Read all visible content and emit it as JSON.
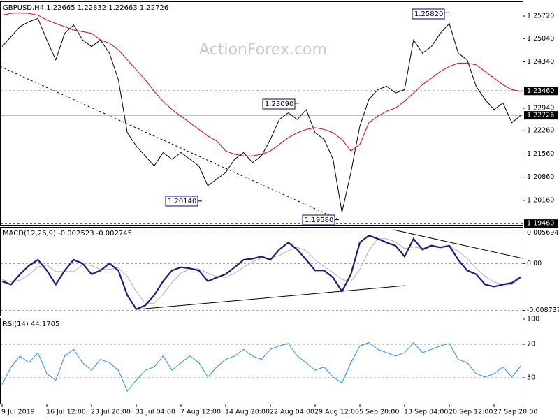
{
  "chart_data": [
    {
      "type": "line",
      "title": "GBPUSD,H4  1.22665 1.22832 1.22663 1.22726",
      "watermark": "ActionForex.com",
      "ylim": [
        1.1942,
        1.261
      ],
      "yticks": [
        {
          "value": 1.2572,
          "label": "1.25720"
        },
        {
          "value": 1.2504,
          "label": "1.25040"
        },
        {
          "value": 1.2434,
          "label": "1.24340"
        },
        {
          "value": 1.2294,
          "label": "1.22940"
        },
        {
          "value": 1.2226,
          "label": "1.22260"
        },
        {
          "value": 1.2156,
          "label": "1.21560"
        },
        {
          "value": 1.2086,
          "label": "1.20860"
        },
        {
          "value": 1.2016,
          "label": "1.20160"
        }
      ],
      "levels": [
        {
          "value": 1.2346,
          "label": "1.23460",
          "style": "dashed"
        },
        {
          "value": 1.22726,
          "label": "1.22726",
          "style": "solid"
        },
        {
          "value": 1.1946,
          "label": "1.19460",
          "style": "dashed"
        }
      ],
      "annotations": [
        {
          "value": 1.2582,
          "label": "1.25820"
        },
        {
          "value": 1.2309,
          "label": "1.23090"
        },
        {
          "value": 1.2014,
          "label": "1.20140"
        },
        {
          "value": 1.1958,
          "label": "1.19580"
        }
      ],
      "series": [
        {
          "color": "#000000",
          "values": [
            1.248,
            1.251,
            1.254,
            1.2555,
            1.2565,
            1.25,
            1.244,
            1.252,
            1.2545,
            1.25,
            1.248,
            1.25,
            1.246,
            1.238,
            1.222,
            1.218,
            1.215,
            1.212,
            1.216,
            1.214,
            1.216,
            1.214,
            1.212,
            1.206,
            1.208,
            1.21,
            1.214,
            1.216,
            1.213,
            1.215,
            1.22,
            1.226,
            1.228,
            1.226,
            1.229,
            1.222,
            1.22,
            1.214,
            1.198,
            1.21,
            1.224,
            1.232,
            1.235,
            1.236,
            1.234,
            1.235,
            1.25,
            1.246,
            1.248,
            1.252,
            1.255,
            1.246,
            1.244,
            1.236,
            1.232,
            1.229,
            1.231,
            1.225,
            1.22726
          ]
        },
        {
          "color": "#e00000",
          "values": [
            1.2575,
            1.258,
            1.2582,
            1.258,
            1.2575,
            1.256,
            1.255,
            1.254,
            1.253,
            1.2525,
            1.252,
            1.25,
            1.249,
            1.247,
            1.244,
            1.241,
            1.238,
            1.2345,
            1.2315,
            1.229,
            1.227,
            1.225,
            1.223,
            1.221,
            1.2195,
            1.2165,
            1.2155,
            1.215,
            1.215,
            1.2155,
            1.2165,
            1.2185,
            1.2205,
            1.222,
            1.223,
            1.2235,
            1.223,
            1.222,
            1.22,
            1.2165,
            1.2185,
            1.225,
            1.227,
            1.2285,
            1.2295,
            1.2315,
            1.234,
            1.2365,
            1.2385,
            1.2405,
            1.242,
            1.243,
            1.243,
            1.2425,
            1.2405,
            1.2385,
            1.2365,
            1.235,
            1.2345
          ]
        }
      ]
    },
    {
      "type": "line",
      "title": "MACD(12,26,9) -0.002523 -0.002745",
      "ylim": [
        -0.0097,
        0.0068
      ],
      "yticks": [
        0.005694,
        {
          "value": 0,
          "label": "0.00"
        },
        -0.008737
      ],
      "series": [
        {
          "color": "#b0b0b0",
          "values": [
            -0.003,
            -0.0034,
            -0.0031,
            -0.0021,
            -0.0006,
            -0.0003,
            -0.0015,
            -0.0015,
            -0.0015,
            -0.0002,
            -0.0004,
            -0.0011,
            -0.0011,
            -0.0008,
            -0.0024,
            -0.0052,
            -0.0074,
            -0.0074,
            -0.0057,
            -0.0035,
            -0.0018,
            -0.001,
            -0.001,
            -0.0018,
            -0.0024,
            -0.0026,
            -0.0018,
            -0.0007,
            0.0003,
            0.001,
            0.001,
            0.0015,
            0.0024,
            0.003,
            0.0024,
            0.0007,
            -0.0006,
            -0.0017,
            -0.003,
            -0.0033,
            -0.0011,
            0.0024,
            0.0046,
            0.0046,
            0.004,
            0.0028,
            0.0031,
            0.0028,
            0.0035,
            0.003,
            0.0032,
            0.0023,
            0.0009,
            -0.0009,
            -0.0024,
            -0.0034,
            -0.004,
            -0.0039,
            -0.0027
          ]
        },
        {
          "color": "#1c1c80",
          "values": [
            -0.0033,
            -0.0039,
            -0.002,
            -0.0004,
            0.0007,
            -0.0013,
            -0.0039,
            -0.0013,
            0.0007,
            0,
            -0.002,
            -0.0013,
            0,
            -0.0013,
            -0.0059,
            -0.0085,
            -0.0078,
            -0.0059,
            -0.0033,
            -0.0013,
            -0.0007,
            -0.0009,
            -0.0013,
            -0.0033,
            -0.0026,
            -0.002,
            -0.0007,
            0.0007,
            0.0009,
            0.0013,
            0.0007,
            0.0026,
            0.0039,
            0.0026,
            0.0007,
            -0.0013,
            -0.0013,
            -0.0026,
            -0.0052,
            -0.002,
            0.0039,
            0.0052,
            0.0046,
            0.0039,
            0.0033,
            0.0013,
            0.0046,
            0.0026,
            0.0033,
            0.003,
            0.0033,
            0.0007,
            -0.0013,
            -0.002,
            -0.0039,
            -0.0043,
            -0.0039,
            -0.0036,
            -0.0025
          ]
        }
      ]
    },
    {
      "type": "line",
      "title": "RSI(14) 44.1705",
      "ylim": [
        0,
        100
      ],
      "yticks": [
        100,
        70,
        30
      ],
      "categories": [
        "9 Jul 2019",
        null,
        null,
        null,
        null,
        "16 Jul 12:00",
        null,
        null,
        null,
        null,
        "23 Jul 20:00",
        null,
        null,
        null,
        null,
        "31 Jul 04:00",
        null,
        null,
        null,
        null,
        "7 Aug 12:00",
        null,
        null,
        null,
        null,
        "14 Aug 20:00",
        null,
        null,
        null,
        null,
        "22 Aug 04:00",
        null,
        null,
        null,
        null,
        "29 Aug 12:00",
        null,
        null,
        null,
        null,
        "5 Sep 20:00",
        null,
        null,
        null,
        null,
        "13 Sep 04:00",
        null,
        null,
        null,
        null,
        "20 Sep 12:00",
        null,
        null,
        null,
        null,
        "27 Sep 20:00",
        null,
        null,
        null
      ],
      "series": [
        {
          "color": "#1e8fff",
          "values": [
            22,
            43,
            56,
            48,
            60,
            35,
            27,
            56,
            64,
            48,
            39,
            52,
            48,
            39,
            14,
            27,
            39,
            43,
            56,
            39,
            48,
            56,
            48,
            31,
            43,
            52,
            56,
            64,
            56,
            52,
            64,
            68,
            71,
            56,
            48,
            39,
            43,
            31,
            24,
            48,
            68,
            72,
            64,
            60,
            56,
            60,
            72,
            60,
            64,
            68,
            71,
            52,
            48,
            35,
            31,
            35,
            43,
            31,
            44.17
          ]
        }
      ]
    }
  ]
}
